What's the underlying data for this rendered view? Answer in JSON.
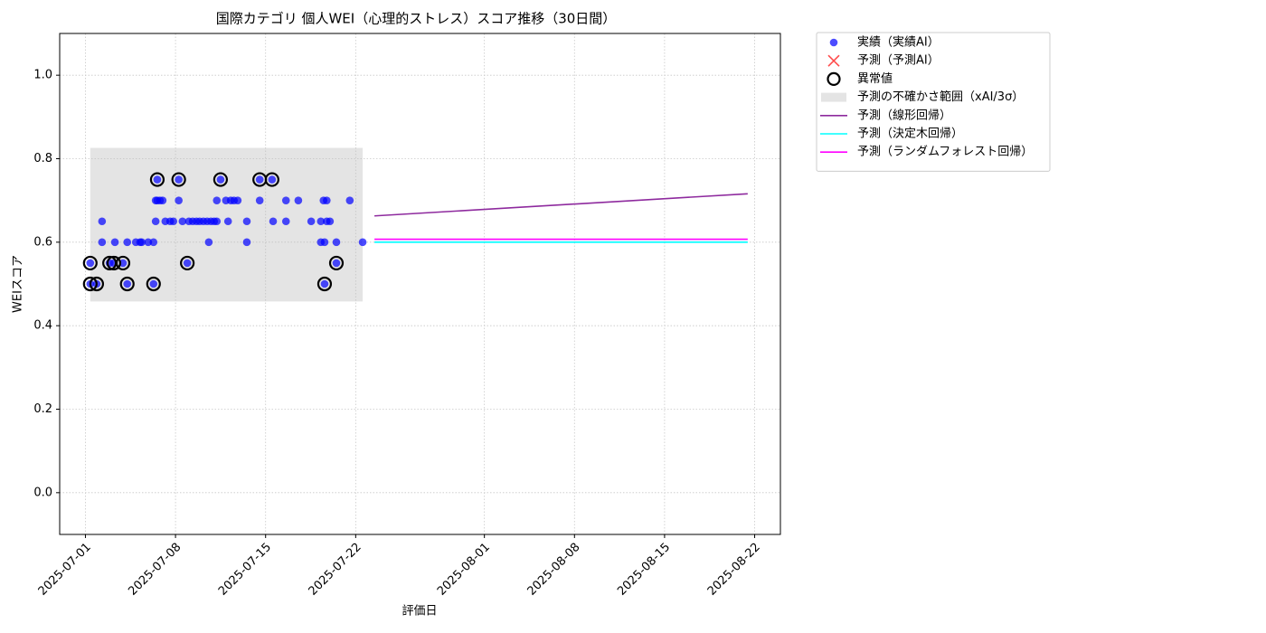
{
  "chart_data": {
    "type": "scatter",
    "title": "国際カテゴリ 個人WEI（心理的ストレス）スコア推移（30日間）",
    "x_label": "評価日",
    "y_label": "WEIスコア",
    "xlim": [
      "2025-06-29",
      "2025-08-24"
    ],
    "xticks": [
      "2025-07-01",
      "2025-07-08",
      "2025-07-15",
      "2025-07-22",
      "2025-08-01",
      "2025-08-08",
      "2025-08-15",
      "2025-08-22"
    ],
    "ylim": [
      -0.1,
      1.1
    ],
    "yticks": [
      {
        "value": 0,
        "label": "0.0"
      },
      {
        "value": 0.2,
        "label": "0.2"
      },
      {
        "value": 0.4,
        "label": "0.4"
      },
      {
        "value": 0.6,
        "label": "0.6"
      },
      {
        "value": 0.8,
        "label": "0.8"
      },
      {
        "value": 1,
        "label": "1.0"
      }
    ],
    "grid": true,
    "legend": "outside-upper-right",
    "series": [
      {
        "name": "実績（実績AI）",
        "type": "dot",
        "color": "#0000ff",
        "x": [
          "2025-07-01T09:00",
          "2025-07-01T09:00",
          "2025-07-01T21:00",
          "2025-07-02T07:00",
          "2025-07-02T07:00",
          "2025-07-02T21:00",
          "2025-07-03T05:00",
          "2025-07-03T07:00",
          "2025-07-03T22:00",
          "2025-07-04T06:00",
          "2025-07-04T06:00",
          "2025-07-04T22:00",
          "2025-07-05T06:00",
          "2025-07-05T09:00",
          "2025-07-05T21:00",
          "2025-07-06T07:00",
          "2025-07-06T07:00",
          "2025-07-06T11:00",
          "2025-07-06T11:00",
          "2025-07-06T14:00",
          "2025-07-06T14:00",
          "2025-07-06T19:00",
          "2025-07-07T00:00",
          "2025-07-07T05:00",
          "2025-07-07T14:00",
          "2025-07-07T20:00",
          "2025-07-08T06:00",
          "2025-07-08T06:00",
          "2025-07-08T13:00",
          "2025-07-08T22:00",
          "2025-07-09T01:00",
          "2025-07-09T08:00",
          "2025-07-09T15:00",
          "2025-07-09T21:00",
          "2025-07-10T04:00",
          "2025-07-10T11:00",
          "2025-07-10T14:00",
          "2025-07-10T18:00",
          "2025-07-11T00:00",
          "2025-07-11T05:00",
          "2025-07-11T05:00",
          "2025-07-11T12:00",
          "2025-07-11T22:00",
          "2025-07-12T02:00",
          "2025-07-12T07:00",
          "2025-07-12T13:00",
          "2025-07-12T20:00",
          "2025-07-13T13:00",
          "2025-07-13T13:00",
          "2025-07-14T13:00",
          "2025-07-14T13:00",
          "2025-07-15T12:00",
          "2025-07-15T14:00",
          "2025-07-16T14:00",
          "2025-07-16T14:00",
          "2025-07-17T13:00",
          "2025-07-18T13:00",
          "2025-07-19T07:00",
          "2025-07-19T07:00",
          "2025-07-19T12:00",
          "2025-07-19T14:00",
          "2025-07-19T14:00",
          "2025-07-19T18:00",
          "2025-07-19T18:00",
          "2025-07-20T00:00",
          "2025-07-20T12:00",
          "2025-07-20T12:00",
          "2025-07-21T13:00",
          "2025-07-22T13:00"
        ],
        "values": [
          0.55,
          0.5,
          0.5,
          0.65,
          0.6,
          0.55,
          0.55,
          0.6,
          0.55,
          0.5,
          0.6,
          0.6,
          0.6,
          0.6,
          0.6,
          0.6,
          0.5,
          0.65,
          0.7,
          0.75,
          0.7,
          0.7,
          0.7,
          0.65,
          0.65,
          0.65,
          0.7,
          0.75,
          0.65,
          0.55,
          0.65,
          0.65,
          0.65,
          0.65,
          0.65,
          0.65,
          0.6,
          0.65,
          0.65,
          0.7,
          0.65,
          0.75,
          0.7,
          0.65,
          0.7,
          0.7,
          0.7,
          0.65,
          0.6,
          0.75,
          0.7,
          0.75,
          0.65,
          0.65,
          0.7,
          0.7,
          0.65,
          0.65,
          0.6,
          0.7,
          0.5,
          0.6,
          0.65,
          0.7,
          0.65,
          0.55,
          0.6,
          0.7,
          0.6
        ]
      },
      {
        "name": "予測（予測AI）",
        "type": "cross",
        "color": "#ff0000",
        "x": [],
        "values": []
      },
      {
        "name": "異常値",
        "type": "ring",
        "color": "#000000",
        "x": [
          "2025-07-01T09:00",
          "2025-07-01T09:00",
          "2025-07-01T21:00",
          "2025-07-02T21:00",
          "2025-07-03T05:00",
          "2025-07-03T22:00",
          "2025-07-04T06:00",
          "2025-07-06T07:00",
          "2025-07-06T14:00",
          "2025-07-08T06:00",
          "2025-07-08T22:00",
          "2025-07-11T12:00",
          "2025-07-14T13:00",
          "2025-07-15T12:00",
          "2025-07-19T14:00",
          "2025-07-20T12:00"
        ],
        "values": [
          0.55,
          0.5,
          0.5,
          0.55,
          0.55,
          0.55,
          0.5,
          0.5,
          0.75,
          0.75,
          0.55,
          0.75,
          0.75,
          0.75,
          0.5,
          0.55
        ]
      },
      {
        "name": "予測の不確かさ範囲（xAI/3σ）",
        "type": "band",
        "color": "#bbbbbb",
        "x": [
          "2025-07-01T09:00",
          "2025-07-22T13:00"
        ],
        "lower": [
          0.458,
          0.458
        ],
        "upper": [
          0.826,
          0.826
        ]
      },
      {
        "name": "予測（線形回帰）",
        "type": "line",
        "color": "#8e2a9e",
        "x": [
          "2025-07-23T11:00",
          "2025-08-21T11:00"
        ],
        "values": [
          0.663,
          0.716
        ]
      },
      {
        "name": "予測（決定木回帰）",
        "type": "line",
        "color": "#00ffff",
        "x": [
          "2025-07-23T11:00",
          "2025-08-21T11:00"
        ],
        "values": [
          0.6,
          0.6
        ]
      },
      {
        "name": "予測（ランダムフォレスト回帰）",
        "type": "line",
        "color": "#ff00ff",
        "x": [
          "2025-07-23T11:00",
          "2025-08-21T11:00"
        ],
        "values": [
          0.607,
          0.607
        ]
      }
    ]
  }
}
